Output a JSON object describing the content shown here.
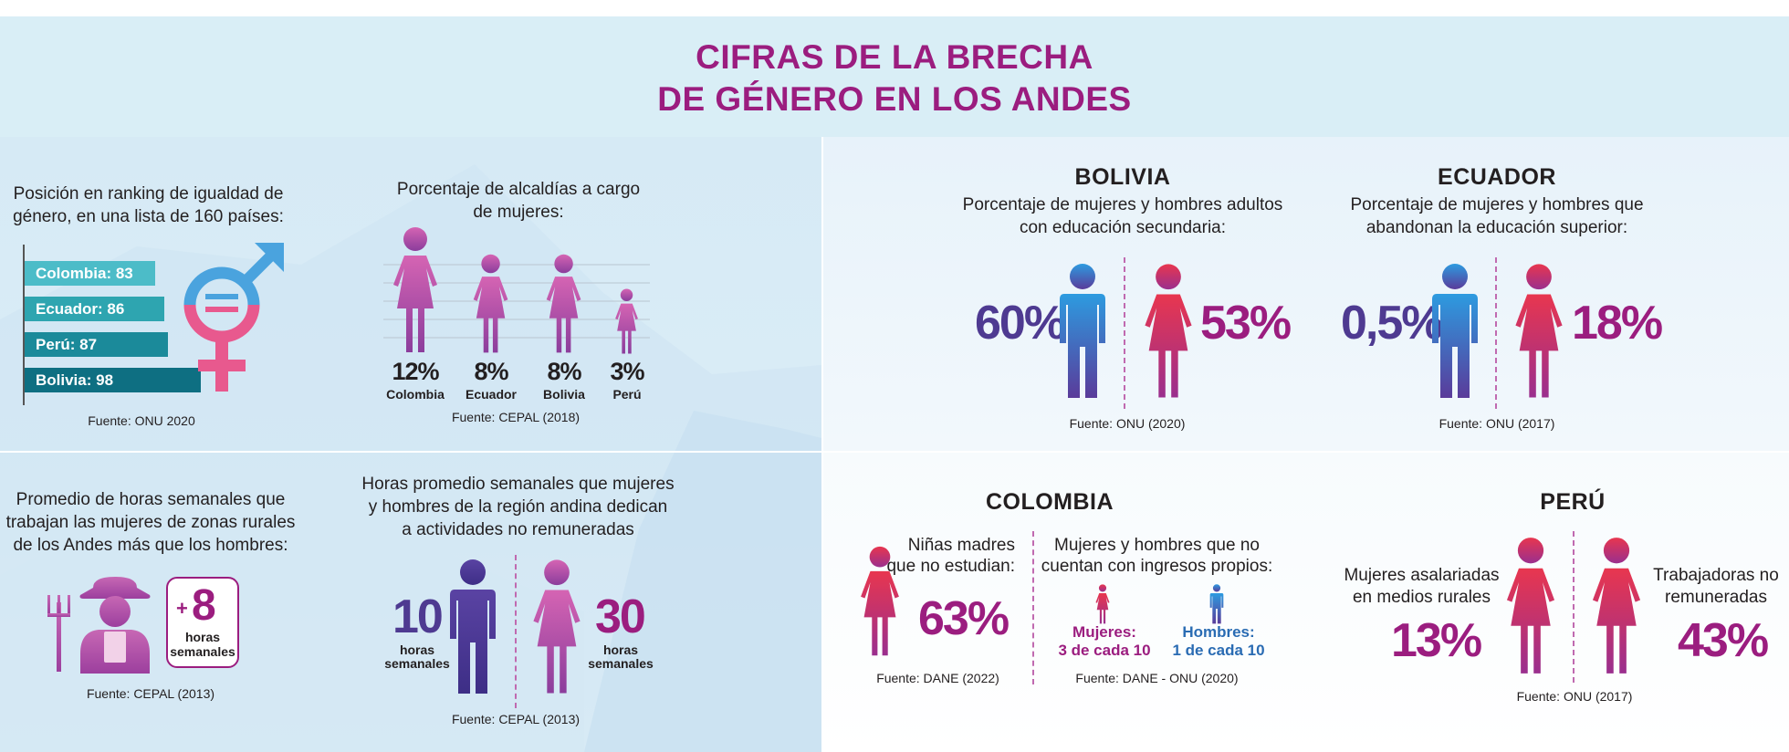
{
  "title": {
    "line1": "CIFRAS DE LA BRECHA",
    "line2": "DE GÉNERO EN LOS ANDES"
  },
  "colors": {
    "magenta": "#9b1d7f",
    "purple": "#4e3a91",
    "blue": "#2f8bd0",
    "pink": "#e6548a",
    "teal": "#1b8a9a"
  },
  "ranking": {
    "label_line1": "Posición en ranking de igualdad de",
    "label_line2": "género, en una lista de 160 países:",
    "source": "Fuente: ONU 2020",
    "icon": "gender-equality-icon",
    "equal_sign": "="
  },
  "alcaldias": {
    "label_line1": "Porcentaje de alcaldías a cargo",
    "label_line2": "de mujeres:",
    "source": "Fuente: CEPAL (2018)"
  },
  "bolivia": {
    "heading": "BOLIVIA",
    "label_line1": "Porcentaje de mujeres y hombres adultos",
    "label_line2": "con educación secundaria:",
    "men_pct": "60%",
    "women_pct": "53%",
    "source": "Fuente: ONU (2020)"
  },
  "ecuador": {
    "heading": "ECUADOR",
    "label_line1": "Porcentaje de mujeres y hombres que",
    "label_line2": "abandonan la educación superior:",
    "men_pct": "0,5%",
    "women_pct": "18%",
    "source": "Fuente: ONU (2017)"
  },
  "rural_hours": {
    "label_line1": "Promedio de horas semanales que",
    "label_line2": "trabajan las mujeres de zonas rurales",
    "label_line3": "de los Andes más que los hombres:",
    "plus": "+",
    "value": "8",
    "unit_line1": "horas",
    "unit_line2": "semanales",
    "source": "Fuente: CEPAL (2013)",
    "icon": "farmer-woman-icon"
  },
  "unpaid": {
    "label_line1": "Horas promedio semanales que mujeres",
    "label_line2": "y hombres de la región andina dedican",
    "label_line3": "a actividades no remuneradas",
    "men_value": "10",
    "men_unit1": "horas",
    "men_unit2": "semanales",
    "women_value": "30",
    "women_unit1": "horas",
    "women_unit2": "semanales",
    "source": "Fuente: CEPAL (2013)"
  },
  "colombia": {
    "heading": "COLOMBIA",
    "girls_label1": "Niñas madres",
    "girls_label2": "que no estudian:",
    "girls_pct": "63%",
    "girls_source": "Fuente: DANE (2022)",
    "income_label1": "Mujeres y hombres que no",
    "income_label2": "cuentan con ingresos propios:",
    "women_label": "Mujeres:",
    "women_ratio": "3 de cada 10",
    "men_label": "Hombres:",
    "men_ratio": "1 de cada 10",
    "income_source": "Fuente: DANE - ONU (2020)"
  },
  "peru": {
    "heading": "PERÚ",
    "rural_label1": "Mujeres asalariadas",
    "rural_label2": "en medios rurales",
    "rural_pct": "13%",
    "unpaid_label1": "Trabajadoras no",
    "unpaid_label2": "remuneradas",
    "unpaid_pct": "43%",
    "source": "Fuente: ONU (2017)"
  },
  "chart_data": [
    {
      "type": "bar",
      "title": "Posición en ranking de igualdad de género, en una lista de 160 países",
      "orientation": "horizontal",
      "categories": [
        "Colombia",
        "Ecuador",
        "Perú",
        "Bolivia"
      ],
      "tick_labels": [
        "Colombia: 83",
        "Ecuador: 86",
        "Perú: 87",
        "Bolivia: 98"
      ],
      "values": [
        83,
        86,
        87,
        98
      ],
      "xlim": [
        0,
        160
      ]
    },
    {
      "type": "bar",
      "title": "Porcentaje de alcaldías a cargo de mujeres",
      "categories": [
        "Colombia",
        "Ecuador",
        "Bolivia",
        "Perú"
      ],
      "tick_labels": [
        "12%",
        "8%",
        "8%",
        "3%"
      ],
      "values": [
        12,
        8,
        8,
        3
      ],
      "unit": "%"
    }
  ]
}
